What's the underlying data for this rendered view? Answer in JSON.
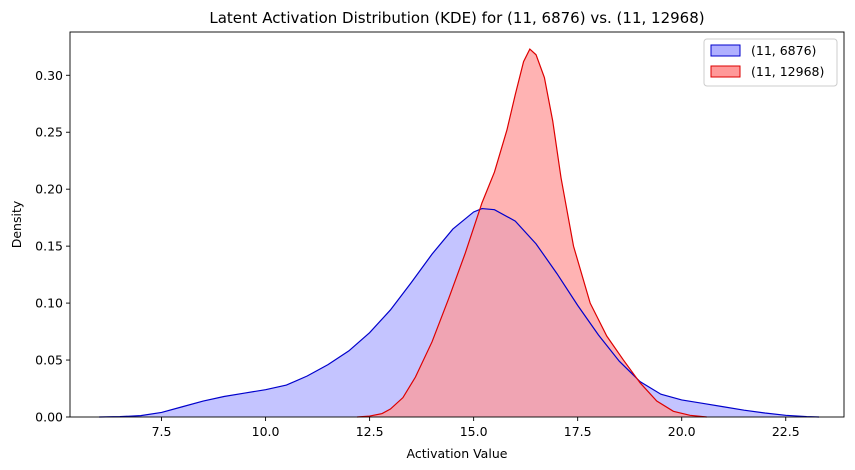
{
  "chart_data": {
    "type": "area",
    "title": "Latent Activation Distribution (KDE) for (11, 6876) vs. (11, 12968)",
    "xlabel": "Activation Value",
    "ylabel": "Density",
    "xlim": [
      5.3,
      23.9
    ],
    "ylim": [
      0,
      0.338
    ],
    "xticks": [
      7.5,
      10.0,
      12.5,
      15.0,
      17.5,
      20.0,
      22.5
    ],
    "xtick_labels": [
      "7.5",
      "10.0",
      "12.5",
      "15.0",
      "17.5",
      "20.0",
      "22.5"
    ],
    "yticks": [
      0.0,
      0.05,
      0.1,
      0.15,
      0.2,
      0.25,
      0.3
    ],
    "ytick_labels": [
      "0.00",
      "0.05",
      "0.10",
      "0.15",
      "0.20",
      "0.25",
      "0.30"
    ],
    "grid": false,
    "legend_position": "top-right",
    "series": [
      {
        "name": "(11, 6876)",
        "fill": "#b0b0ff",
        "line": "#0000cc",
        "points": [
          [
            6.0,
            0.0
          ],
          [
            6.5,
            0.0003
          ],
          [
            7.0,
            0.0012
          ],
          [
            7.5,
            0.004
          ],
          [
            8.0,
            0.009
          ],
          [
            8.5,
            0.014
          ],
          [
            9.0,
            0.018
          ],
          [
            9.5,
            0.021
          ],
          [
            10.0,
            0.024
          ],
          [
            10.5,
            0.028
          ],
          [
            11.0,
            0.036
          ],
          [
            11.5,
            0.046
          ],
          [
            12.0,
            0.058
          ],
          [
            12.5,
            0.074
          ],
          [
            13.0,
            0.094
          ],
          [
            13.5,
            0.118
          ],
          [
            14.0,
            0.143
          ],
          [
            14.5,
            0.165
          ],
          [
            15.0,
            0.18
          ],
          [
            15.2,
            0.183
          ],
          [
            15.5,
            0.182
          ],
          [
            16.0,
            0.172
          ],
          [
            16.5,
            0.152
          ],
          [
            17.0,
            0.126
          ],
          [
            17.5,
            0.098
          ],
          [
            18.0,
            0.072
          ],
          [
            18.5,
            0.049
          ],
          [
            19.0,
            0.031
          ],
          [
            19.5,
            0.02
          ],
          [
            20.0,
            0.015
          ],
          [
            20.5,
            0.012
          ],
          [
            21.0,
            0.009
          ],
          [
            21.5,
            0.006
          ],
          [
            22.0,
            0.0035
          ],
          [
            22.5,
            0.0015
          ],
          [
            23.0,
            0.0004
          ],
          [
            23.3,
            0.0
          ]
        ]
      },
      {
        "name": "(11, 12968)",
        "fill": "#ff9999",
        "line": "#dd0000",
        "points": [
          [
            12.2,
            0.0
          ],
          [
            12.5,
            0.0008
          ],
          [
            12.8,
            0.003
          ],
          [
            13.0,
            0.007
          ],
          [
            13.3,
            0.017
          ],
          [
            13.6,
            0.035
          ],
          [
            14.0,
            0.066
          ],
          [
            14.4,
            0.104
          ],
          [
            14.8,
            0.144
          ],
          [
            15.2,
            0.188
          ],
          [
            15.5,
            0.215
          ],
          [
            15.8,
            0.252
          ],
          [
            16.0,
            0.283
          ],
          [
            16.2,
            0.312
          ],
          [
            16.35,
            0.323
          ],
          [
            16.5,
            0.318
          ],
          [
            16.7,
            0.298
          ],
          [
            16.9,
            0.26
          ],
          [
            17.1,
            0.21
          ],
          [
            17.4,
            0.15
          ],
          [
            17.8,
            0.1
          ],
          [
            18.2,
            0.071
          ],
          [
            18.6,
            0.05
          ],
          [
            19.0,
            0.03
          ],
          [
            19.4,
            0.014
          ],
          [
            19.8,
            0.005
          ],
          [
            20.2,
            0.0015
          ],
          [
            20.6,
            0.0
          ]
        ]
      }
    ]
  }
}
